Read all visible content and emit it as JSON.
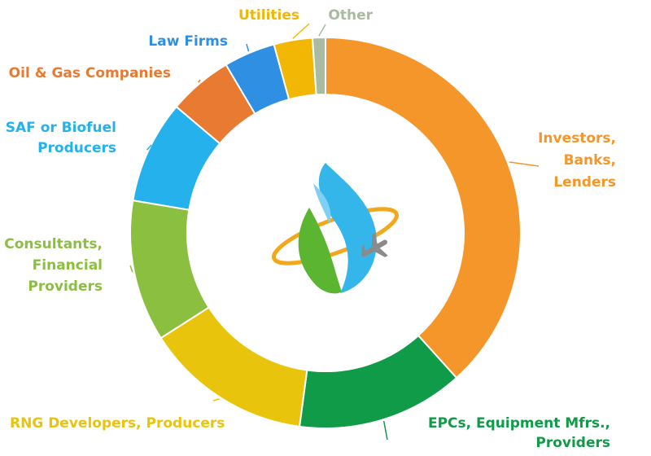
{
  "chart_data": {
    "type": "pie",
    "donut": true,
    "title": "",
    "labeled_slices_only": true,
    "slices": [
      {
        "key": "investors",
        "label": [
          "Investors,",
          "Banks,",
          "Lenders"
        ],
        "value": 36,
        "color": "#f5962a"
      },
      {
        "key": "epcs",
        "label": [
          "EPCs, Equipment Mfrs.,",
          "Providers"
        ],
        "value": 13,
        "color": "#0f9b48"
      },
      {
        "key": "rng",
        "label": [
          "RNG Developers, Producers"
        ],
        "value": 13,
        "color": "#e9c40d"
      },
      {
        "key": "consultants",
        "label": [
          "Consultants,",
          "Financial",
          "Providers"
        ],
        "value": 11,
        "color": "#8bbf3f"
      },
      {
        "key": "saf",
        "label": [
          "SAF or Biofuel",
          "Producers"
        ],
        "value": 8,
        "color": "#25b2ec"
      },
      {
        "key": "oilgas",
        "label": [
          "Oil & Gas Companies"
        ],
        "value": 5,
        "color": "#e97a32"
      },
      {
        "key": "law",
        "label": [
          "Law Firms"
        ],
        "value": 4,
        "color": "#2f8fe3"
      },
      {
        "key": "utilities",
        "label": [
          "Utilities"
        ],
        "value": 3,
        "color": "#f2b705"
      },
      {
        "key": "other",
        "label": [
          "Other"
        ],
        "value": 1,
        "color": "#a9bba0"
      }
    ]
  },
  "center_logo": {
    "icon": "biofuel-flame-airplane-icon",
    "colors": {
      "flame": "#35b6ea",
      "leaf": "#5cb531",
      "orbit": "#f2a81d",
      "plane": "#8a8a8a"
    }
  }
}
